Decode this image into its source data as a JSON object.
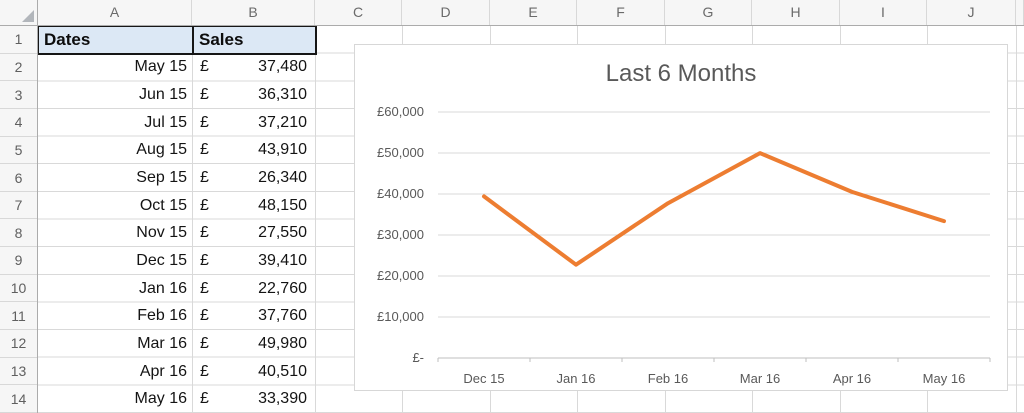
{
  "sheet": {
    "column_headers": [
      "A",
      "B",
      "C",
      "D",
      "E",
      "F",
      "G",
      "H",
      "I",
      "J",
      ""
    ],
    "row_headers": [
      "1",
      "2",
      "3",
      "4",
      "5",
      "6",
      "7",
      "8",
      "9",
      "10",
      "11",
      "12",
      "13",
      "14"
    ],
    "table": {
      "header": {
        "dates": "Dates",
        "sales": "Sales"
      },
      "currency_symbol": "£",
      "rows": [
        {
          "date": "May 15",
          "value": "37,480"
        },
        {
          "date": "Jun 15",
          "value": "36,310"
        },
        {
          "date": "Jul 15",
          "value": "37,210"
        },
        {
          "date": "Aug 15",
          "value": "43,910"
        },
        {
          "date": "Sep 15",
          "value": "26,340"
        },
        {
          "date": "Oct 15",
          "value": "48,150"
        },
        {
          "date": "Nov 15",
          "value": "27,550"
        },
        {
          "date": "Dec 15",
          "value": "39,410"
        },
        {
          "date": "Jan 16",
          "value": "22,760"
        },
        {
          "date": "Feb 16",
          "value": "37,760"
        },
        {
          "date": "Mar 16",
          "value": "49,980"
        },
        {
          "date": "Apr 16",
          "value": "40,510"
        },
        {
          "date": "May 16",
          "value": "33,390"
        }
      ]
    }
  },
  "chart": {
    "title": "Last 6 Months",
    "y_tick_labels_top_down": [
      "£60,000",
      "£50,000",
      "£40,000",
      "£30,000",
      "£20,000",
      "£10,000",
      "£-"
    ],
    "accent_color": "#ED7D31",
    "text_color": "#595959",
    "gridline_color": "#D9D9D9",
    "axis_color": "#BFBFBF"
  },
  "chart_data": {
    "type": "line",
    "title": "Last 6 Months",
    "categories": [
      "Dec 15",
      "Jan 16",
      "Feb 16",
      "Mar 16",
      "Apr 16",
      "May 16"
    ],
    "values": [
      39410,
      22760,
      37760,
      49980,
      40510,
      33390
    ],
    "series_color": "#ED7D31",
    "xlabel": "",
    "ylabel": "",
    "ylim": [
      0,
      60000
    ],
    "y_tick_step": 10000,
    "y_tick_labels": [
      "£-",
      "£10,000",
      "£20,000",
      "£30,000",
      "£40,000",
      "£50,000",
      "£60,000"
    ],
    "grid": true,
    "legend": "none"
  }
}
